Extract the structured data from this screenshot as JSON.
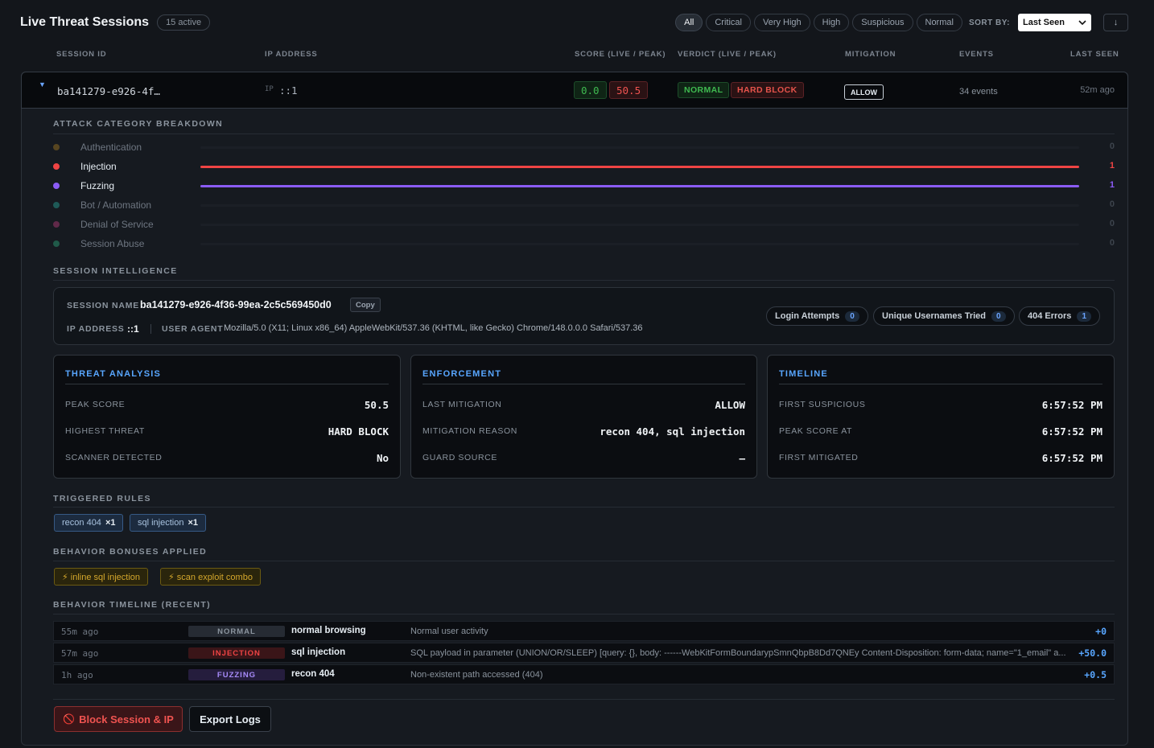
{
  "header": {
    "title": "Live Threat Sessions",
    "active_count": "15 active",
    "filters": [
      "All",
      "Critical",
      "Very High",
      "High",
      "Suspicious",
      "Normal"
    ],
    "active_filter": "All",
    "sort_label": "SORT BY:",
    "sort_value": "Last Seen",
    "sort_dir": "↓"
  },
  "columns": {
    "session_id": "SESSION ID",
    "ip": "IP ADDRESS",
    "score": "SCORE (LIVE / PEAK)",
    "verdict": "VERDICT (LIVE / PEAK)",
    "mitigation": "MITIGATION",
    "events": "EVENTS",
    "last_seen": "LAST SEEN"
  },
  "session": {
    "expand_icon": "▼",
    "id_short": "ba141279-e926-4f…",
    "ip_label": "IP",
    "ip": "::1",
    "score_live": "0.0",
    "score_peak": "50.5",
    "verdict_live": "NORMAL",
    "verdict_peak": "HARD BLOCK",
    "mitigation": "ALLOW",
    "events": "34 events",
    "last_seen": "52m ago"
  },
  "breakdown": {
    "title": "ATTACK CATEGORY BREAKDOWN",
    "max": 1,
    "items": [
      {
        "label": "Authentication",
        "count": "0",
        "value": 0,
        "color": "#d29922"
      },
      {
        "label": "Injection",
        "count": "1",
        "value": 1,
        "color": "#ef4444"
      },
      {
        "label": "Fuzzing",
        "count": "1",
        "value": 1,
        "color": "#8b5cf6"
      },
      {
        "label": "Bot / Automation",
        "count": "0",
        "value": 0,
        "color": "#2dd4bf"
      },
      {
        "label": "Denial of Service",
        "count": "0",
        "value": 0,
        "color": "#ec4899"
      },
      {
        "label": "Session Abuse",
        "count": "0",
        "value": 0,
        "color": "#34d399"
      }
    ]
  },
  "intel": {
    "title": "SESSION INTELLIGENCE",
    "name_label": "SESSION NAME",
    "name": "ba141279-e926-4f36-99ea-2c5c569450d0",
    "copy": "Copy",
    "ip_label": "IP ADDRESS",
    "ip": "::1",
    "ua_label": "USER AGENT",
    "ua": "Mozilla/5.0 (X11; Linux x86_64) AppleWebKit/537.36 (KHTML, like Gecko) Chrome/148.0.0.0 Safari/537.36",
    "stats": [
      {
        "label": "Login Attempts",
        "value": "0"
      },
      {
        "label": "Unique Usernames Tried",
        "value": "0"
      },
      {
        "label": "404 Errors",
        "value": "1"
      }
    ]
  },
  "cards": [
    {
      "title": "THREAT ANALYSIS",
      "rows": [
        {
          "k": "PEAK SCORE",
          "v": "50.5"
        },
        {
          "k": "HIGHEST THREAT",
          "v": "HARD BLOCK"
        },
        {
          "k": "SCANNER DETECTED",
          "v": "No"
        }
      ]
    },
    {
      "title": "ENFORCEMENT",
      "rows": [
        {
          "k": "LAST MITIGATION",
          "v": "ALLOW"
        },
        {
          "k": "MITIGATION REASON",
          "v": "recon 404, sql injection"
        },
        {
          "k": "GUARD SOURCE",
          "v": "–"
        }
      ]
    },
    {
      "title": "TIMELINE",
      "rows": [
        {
          "k": "FIRST SUSPICIOUS",
          "v": "6:57:52 PM"
        },
        {
          "k": "PEAK SCORE AT",
          "v": "6:57:52 PM"
        },
        {
          "k": "FIRST MITIGATED",
          "v": "6:57:52 PM"
        }
      ]
    }
  ],
  "rules": {
    "title": "TRIGGERED RULES",
    "items": [
      {
        "label": "recon 404",
        "count": "×1"
      },
      {
        "label": "sql injection",
        "count": "×1"
      }
    ]
  },
  "bonuses": {
    "title": "BEHAVIOR BONUSES APPLIED",
    "items": [
      "⚡ inline sql injection",
      "⚡ scan exploit combo"
    ]
  },
  "timeline": {
    "title": "BEHAVIOR TIMELINE (RECENT)",
    "items": [
      {
        "ago": "55m ago",
        "tag": "NORMAL",
        "action": "normal browsing",
        "desc": "Normal user activity",
        "delta": "+0",
        "tag_color": "#8b949e",
        "tag_bg": "#262b33"
      },
      {
        "ago": "57m ago",
        "tag": "INJECTION",
        "action": "sql injection",
        "desc": "SQL payload in parameter (UNION/OR/SLEEP) [query: {}, body: ------WebKitFormBoundarypSmnQbpB8Dd7QNEy Content-Disposition: form-data; name=\"1_email\" a...",
        "delta": "+50.0",
        "tag_color": "#ef4444",
        "tag_bg": "#3a1518"
      },
      {
        "ago": "1h ago",
        "tag": "FUZZING",
        "action": "recon 404",
        "desc": "Non-existent path accessed (404)",
        "delta": "+0.5",
        "tag_color": "#a78bfa",
        "tag_bg": "#251d3d"
      }
    ]
  },
  "actions": {
    "block": "Block Session & IP",
    "block_icon": "🚫",
    "export": "Export Logs"
  }
}
